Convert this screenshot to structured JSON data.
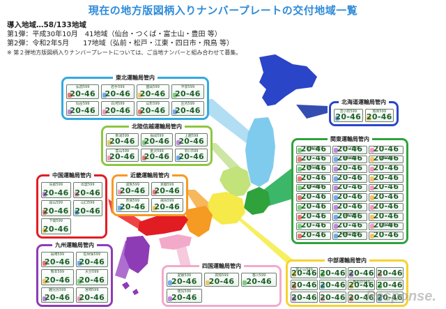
{
  "title": "現在の地方版図柄入りナンバープレートの交付地域一覧",
  "info": {
    "line1": "導入地域…58/133地域",
    "line2": "第1弾：平成30年10月　41地域（仙台・つくば・富士山・豊田 等）",
    "line3": "第2弾：令和2年5月　　17地域（弘前・松戸・江東・四日市・飛鳥 等）",
    "note": "※ 第２弾地方版図柄入りナンバープレートについては、ご当地ナンバーと組み合わせて募集。"
  },
  "plate_number": "20-46",
  "colors": {
    "hokkaido": "#2b45c8",
    "tohoku": "#33a9e0",
    "hokuriku": "#8dc63f",
    "kanto": "#2fa23c",
    "chubu": "#f6d22e",
    "kinki": "#f59a23",
    "chugoku": "#e21c23",
    "shikoku": "#f3a9c9",
    "kyushu": "#8e3cb5"
  },
  "regions": [
    {
      "key": "tohoku",
      "title": "東北運輸局管内",
      "plates": [
        "弘前",
        "岩手",
        "盛岡",
        "平泉",
        "仙台",
        "白河",
        "山形",
        "庄内"
      ]
    },
    {
      "key": "hokkaido",
      "title": "北海道運輸局管内",
      "plates": [
        "苫小牧",
        "知床"
      ]
    },
    {
      "key": "hokuriku",
      "title": "北陸信越運輸局管内",
      "plates": [
        "新潟",
        "長岡",
        "上越",
        "富山",
        "金沢",
        "石川"
      ]
    },
    {
      "key": "kanto",
      "title": "関東運輸局管内",
      "plates": [
        "土浦",
        "つくば",
        "",
        "",
        "那須",
        "成田",
        "柏",
        "",
        "",
        "",
        "",
        "",
        "松戸",
        "",
        "",
        "",
        "",
        "",
        "",
        "",
        "",
        "",
        "江東",
        "",
        "",
        "",
        "杉並",
        "",
        "世田谷",
        ""
      ]
    },
    {
      "key": "chugoku",
      "title": "中国運輸局管内",
      "plates": [
        "鳥取",
        "出雲",
        "岡山",
        "山口",
        "下関"
      ]
    },
    {
      "key": "kinki",
      "title": "近畿運輸局管内",
      "plates": [
        "滋賀",
        "京都",
        "奈良",
        "飛鳥"
      ]
    },
    {
      "key": "kyushu",
      "title": "九州運輸局管内",
      "plates": [
        "長崎",
        "佐世保",
        "熊本",
        "大分",
        "鹿児島",
        "宮崎"
      ]
    },
    {
      "key": "shikoku",
      "title": "四国運輸局管内",
      "plates": [
        "愛媛",
        "高知",
        "香川",
        "徳島"
      ]
    },
    {
      "key": "chubu",
      "title": "中部運輸局管内",
      "plates": [
        "富士山",
        "",
        "",
        "",
        "",
        "",
        "春日井",
        "",
        "",
        "",
        "",
        ""
      ]
    }
  ],
  "extra_plates": {
    "fuji": "富士山"
  },
  "watermark": "Response."
}
